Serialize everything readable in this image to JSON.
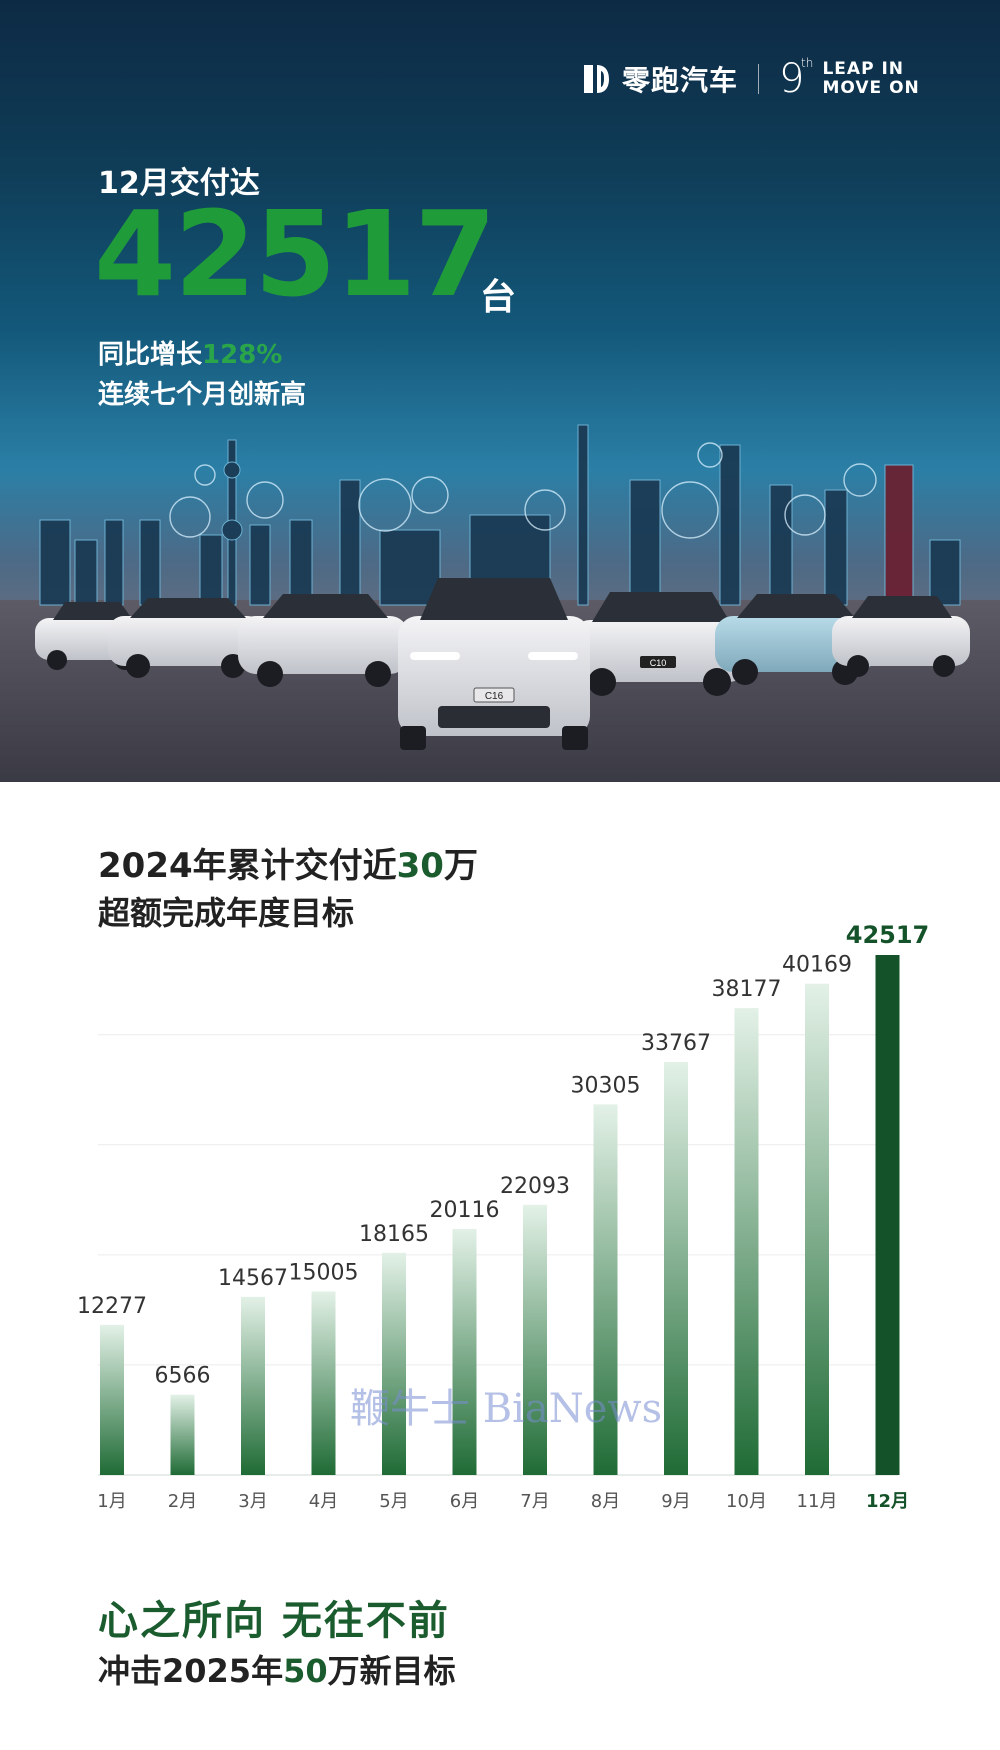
{
  "brand": {
    "name": "零跑汽车",
    "anniversary_number": "9",
    "anniversary_suffix": "th",
    "slogan_line1": "LEAP IN",
    "slogan_line2": "MOVE ON"
  },
  "hero": {
    "line1": "12月交付达",
    "number": "42517",
    "unit": "台",
    "growth_prefix": "同比增长",
    "growth_value": "128%",
    "record_text": "连续七个月创新高",
    "car_badges": [
      "C16",
      "C10"
    ]
  },
  "chart_section": {
    "title_prefix": "2024年累计交付近",
    "title_number": "30",
    "title_suffix": "万",
    "subtitle": "超额完成年度目标"
  },
  "chart_data": {
    "type": "bar",
    "title": "",
    "xlabel": "",
    "ylabel": "",
    "categories": [
      "1月",
      "2月",
      "3月",
      "4月",
      "5月",
      "6月",
      "7月",
      "8月",
      "9月",
      "10月",
      "11月",
      "12月"
    ],
    "values": [
      12277,
      6566,
      14567,
      15005,
      18165,
      20116,
      22093,
      30305,
      33767,
      38177,
      40169,
      42517
    ],
    "ylim": [
      0,
      42517
    ],
    "grid": true,
    "highlight_index": 11,
    "colors": {
      "bar_top": "#e3f1e7",
      "bar_bottom": "#1f6b35",
      "highlight": "#14532a",
      "label": "#333333",
      "highlight_label": "#14532a"
    }
  },
  "watermark": "鞭牛士 BiaNews",
  "footer": {
    "slogan": "心之所向 无往不前",
    "target_prefix": "冲击2025年",
    "target_number": "50",
    "target_suffix": "万新目标"
  }
}
